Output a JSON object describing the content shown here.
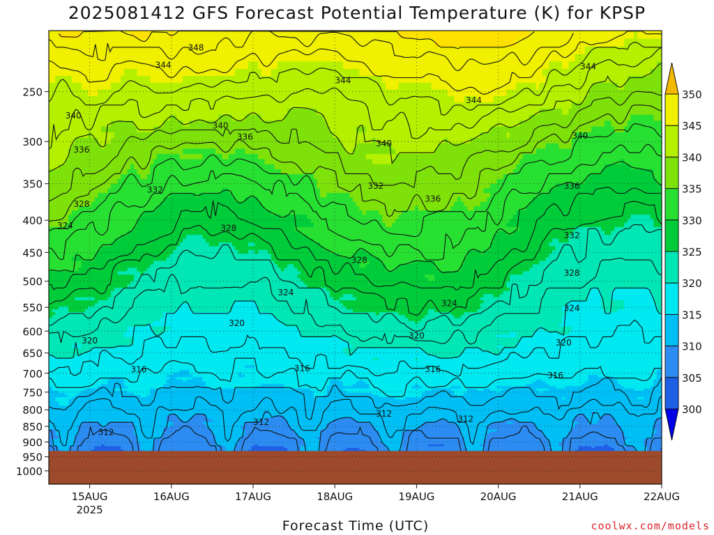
{
  "chart_data": {
    "type": "heatmap",
    "subtype": "time-height filled contour",
    "title": "2025081412 GFS Forecast Potential Temperature (K) for KPSP",
    "xlabel": "Forecast Time (UTC)",
    "ylabel": "",
    "credit": "coolwx.com/models",
    "x_ticks": [
      "15AUG",
      "16AUG",
      "17AUG",
      "18AUG",
      "19AUG",
      "20AUG",
      "21AUG",
      "22AUG"
    ],
    "x_year_label": "2025",
    "x_range_days": [
      14.5,
      22.0
    ],
    "y_ticks": [
      250,
      300,
      350,
      400,
      450,
      500,
      550,
      600,
      650,
      700,
      750,
      800,
      850,
      900,
      950,
      1000
    ],
    "y_range_hpa": [
      200,
      1050
    ],
    "y_scale": "log-pressure (reversed)",
    "surface_pressure_hpa": 930,
    "surface_color": "#9c4a2b",
    "colorbar": {
      "levels": [
        300,
        305,
        310,
        315,
        320,
        325,
        330,
        335,
        340,
        345,
        350
      ],
      "labels": [
        "300",
        "305",
        "310",
        "315",
        "320",
        "325",
        "330",
        "335",
        "340",
        "345",
        "350"
      ],
      "colors": [
        "#0000e6",
        "#1e5fe6",
        "#2c8cf2",
        "#00bff5",
        "#00e8f0",
        "#00e6b4",
        "#00cc3a",
        "#27e032",
        "#7ee10a",
        "#b4f000",
        "#f0f000",
        "#ffe100",
        "#f5b800"
      ]
    },
    "contour_labels": [
      {
        "text": "348",
        "day": 16.3,
        "p": 213
      },
      {
        "text": "344",
        "day": 15.9,
        "p": 227
      },
      {
        "text": "344",
        "day": 18.1,
        "p": 240
      },
      {
        "text": "344",
        "day": 19.7,
        "p": 258
      },
      {
        "text": "344",
        "day": 21.1,
        "p": 228
      },
      {
        "text": "340",
        "day": 14.8,
        "p": 273
      },
      {
        "text": "340",
        "day": 16.6,
        "p": 283
      },
      {
        "text": "340",
        "day": 18.6,
        "p": 302
      },
      {
        "text": "340",
        "day": 21.0,
        "p": 294
      },
      {
        "text": "336",
        "day": 14.9,
        "p": 309
      },
      {
        "text": "336",
        "day": 16.9,
        "p": 295
      },
      {
        "text": "336",
        "day": 19.2,
        "p": 370
      },
      {
        "text": "336",
        "day": 20.9,
        "p": 353
      },
      {
        "text": "332",
        "day": 15.8,
        "p": 358
      },
      {
        "text": "332",
        "day": 18.5,
        "p": 353
      },
      {
        "text": "332",
        "day": 20.9,
        "p": 423
      },
      {
        "text": "328",
        "day": 14.9,
        "p": 377
      },
      {
        "text": "328",
        "day": 16.7,
        "p": 412
      },
      {
        "text": "328",
        "day": 18.3,
        "p": 463
      },
      {
        "text": "328",
        "day": 20.9,
        "p": 485
      },
      {
        "text": "324",
        "day": 14.7,
        "p": 408
      },
      {
        "text": "324",
        "day": 17.4,
        "p": 521
      },
      {
        "text": "324",
        "day": 19.4,
        "p": 542
      },
      {
        "text": "324",
        "day": 20.9,
        "p": 552
      },
      {
        "text": "320",
        "day": 15.0,
        "p": 621
      },
      {
        "text": "320",
        "day": 16.8,
        "p": 583
      },
      {
        "text": "320",
        "day": 19.0,
        "p": 610
      },
      {
        "text": "320",
        "day": 20.8,
        "p": 626
      },
      {
        "text": "316",
        "day": 15.6,
        "p": 691
      },
      {
        "text": "316",
        "day": 17.6,
        "p": 688
      },
      {
        "text": "316",
        "day": 19.2,
        "p": 690
      },
      {
        "text": "316",
        "day": 20.7,
        "p": 706
      },
      {
        "text": "312",
        "day": 15.2,
        "p": 868
      },
      {
        "text": "312",
        "day": 17.1,
        "p": 837
      },
      {
        "text": "312",
        "day": 18.6,
        "p": 812
      },
      {
        "text": "312",
        "day": 19.6,
        "p": 828
      }
    ]
  }
}
